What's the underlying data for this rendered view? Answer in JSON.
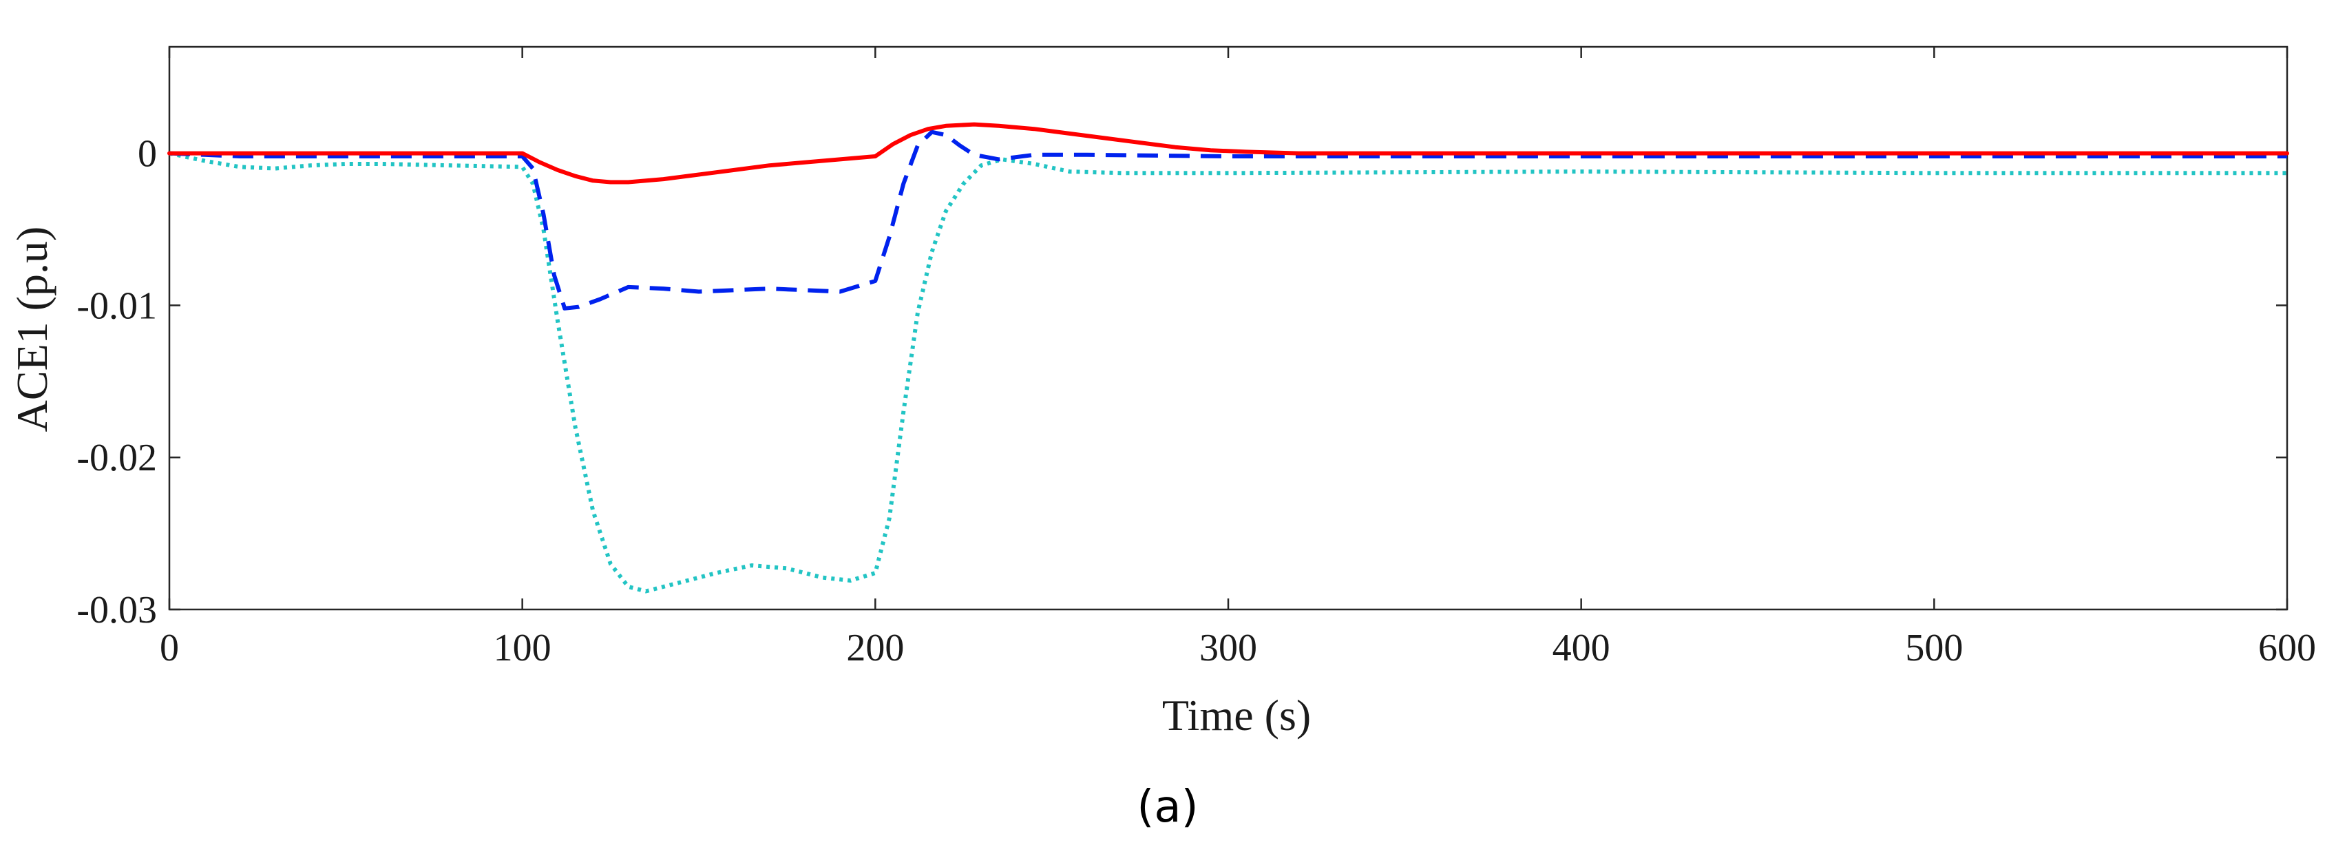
{
  "chart_data": {
    "type": "line",
    "title": "",
    "xlabel": "Time (s)",
    "ylabel": "ACE1 (p.u)",
    "panel_label": "(a)",
    "xlim": [
      0,
      600
    ],
    "ylim": [
      -0.03,
      0.007
    ],
    "grid": false,
    "legend": "none",
    "x_ticks": [
      0,
      100,
      200,
      300,
      400,
      500,
      600
    ],
    "x_tick_labels": [
      "0",
      "100",
      "200",
      "300",
      "400",
      "500",
      "600"
    ],
    "y_ticks": [
      0,
      -0.01,
      -0.02,
      -0.03
    ],
    "y_tick_labels": [
      "0",
      "-0.01",
      "-0.02",
      "-0.03"
    ],
    "series": [
      {
        "name": "solid-red",
        "color": "#ff0000",
        "style": "solid",
        "points": [
          [
            0,
            0
          ],
          [
            100,
            0
          ],
          [
            105,
            -0.0006
          ],
          [
            110,
            -0.0011
          ],
          [
            115,
            -0.0015
          ],
          [
            120,
            -0.0018
          ],
          [
            125,
            -0.0019
          ],
          [
            130,
            -0.0019
          ],
          [
            140,
            -0.0017
          ],
          [
            150,
            -0.0014
          ],
          [
            160,
            -0.0011
          ],
          [
            170,
            -0.0008
          ],
          [
            180,
            -0.0006
          ],
          [
            190,
            -0.0004
          ],
          [
            200,
            -0.0002
          ],
          [
            205,
            0.0006
          ],
          [
            210,
            0.0012
          ],
          [
            215,
            0.0016
          ],
          [
            220,
            0.0018
          ],
          [
            228,
            0.0019
          ],
          [
            235,
            0.0018
          ],
          [
            245,
            0.0016
          ],
          [
            255,
            0.0013
          ],
          [
            265,
            0.001
          ],
          [
            275,
            0.0007
          ],
          [
            285,
            0.0004
          ],
          [
            295,
            0.0002
          ],
          [
            305,
            0.0001
          ],
          [
            320,
            0
          ],
          [
            600,
            0
          ]
        ]
      },
      {
        "name": "dashed-blue",
        "color": "#0022ee",
        "style": "dashed",
        "points": [
          [
            0,
            0
          ],
          [
            10,
            -0.0001
          ],
          [
            20,
            -0.0002
          ],
          [
            100,
            -0.0002
          ],
          [
            103,
            -0.001
          ],
          [
            106,
            -0.004
          ],
          [
            109,
            -0.008
          ],
          [
            112,
            -0.0102
          ],
          [
            116,
            -0.0101
          ],
          [
            122,
            -0.0096
          ],
          [
            130,
            -0.0088
          ],
          [
            140,
            -0.0089
          ],
          [
            150,
            -0.0091
          ],
          [
            160,
            -0.009
          ],
          [
            170,
            -0.0089
          ],
          [
            180,
            -0.009
          ],
          [
            190,
            -0.0091
          ],
          [
            200,
            -0.0084
          ],
          [
            204,
            -0.0055
          ],
          [
            208,
            -0.002
          ],
          [
            212,
            0.0005
          ],
          [
            216,
            0.0014
          ],
          [
            220,
            0.0012
          ],
          [
            224,
            0.0005
          ],
          [
            228,
            -0.0001
          ],
          [
            235,
            -0.0004
          ],
          [
            245,
            -0.0001
          ],
          [
            260,
            -0.0001
          ],
          [
            300,
            -0.0002
          ],
          [
            600,
            -0.0002
          ]
        ]
      },
      {
        "name": "dotted-cyan",
        "color": "#22c4c4",
        "style": "dotted",
        "points": [
          [
            0,
            0
          ],
          [
            10,
            -0.0005
          ],
          [
            20,
            -0.0009
          ],
          [
            30,
            -0.001
          ],
          [
            40,
            -0.0008
          ],
          [
            50,
            -0.0007
          ],
          [
            60,
            -0.0007
          ],
          [
            80,
            -0.0008
          ],
          [
            100,
            -0.0009
          ],
          [
            103,
            -0.002
          ],
          [
            106,
            -0.005
          ],
          [
            110,
            -0.011
          ],
          [
            115,
            -0.018
          ],
          [
            120,
            -0.0235
          ],
          [
            125,
            -0.027
          ],
          [
            130,
            -0.0285
          ],
          [
            135,
            -0.0288
          ],
          [
            145,
            -0.0282
          ],
          [
            155,
            -0.0276
          ],
          [
            165,
            -0.0271
          ],
          [
            175,
            -0.0273
          ],
          [
            185,
            -0.0279
          ],
          [
            193,
            -0.0281
          ],
          [
            200,
            -0.0276
          ],
          [
            204,
            -0.024
          ],
          [
            208,
            -0.017
          ],
          [
            212,
            -0.0105
          ],
          [
            216,
            -0.0065
          ],
          [
            220,
            -0.0038
          ],
          [
            225,
            -0.002
          ],
          [
            230,
            -0.0008
          ],
          [
            236,
            -0.0004
          ],
          [
            245,
            -0.0007
          ],
          [
            255,
            -0.0012
          ],
          [
            270,
            -0.0013
          ],
          [
            300,
            -0.0013
          ],
          [
            400,
            -0.0012
          ],
          [
            500,
            -0.0013
          ],
          [
            600,
            -0.0013
          ]
        ]
      }
    ]
  }
}
